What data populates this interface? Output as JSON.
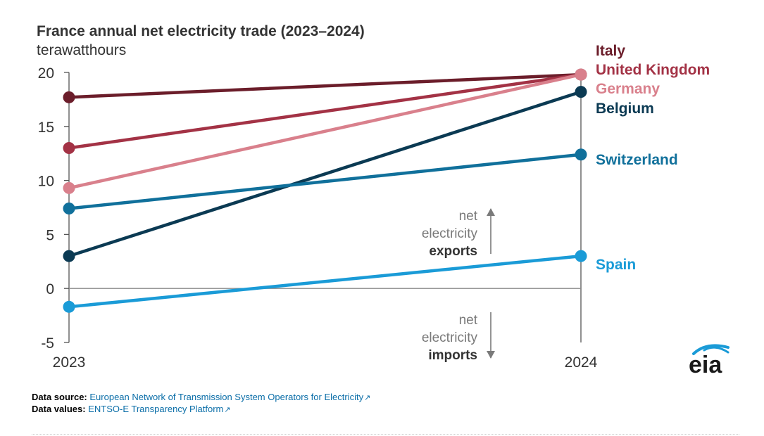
{
  "chart_data": {
    "type": "line",
    "title": "France annual net electricity trade (2023–2024)",
    "ylabel": "terawatthours",
    "xlabel": "",
    "categories": [
      "2023",
      "2024"
    ],
    "ylim": [
      -5,
      20
    ],
    "yticks": [
      20,
      15,
      10,
      5,
      0,
      -5
    ],
    "series": [
      {
        "name": "Italy",
        "values": [
          17.7,
          19.8
        ],
        "color": "#6b1d2a"
      },
      {
        "name": "United Kingdom",
        "values": [
          13.0,
          19.8
        ],
        "color": "#a33245"
      },
      {
        "name": "Germany",
        "values": [
          9.3,
          19.8
        ],
        "color": "#d9808c"
      },
      {
        "name": "Belgium",
        "values": [
          3.0,
          18.2
        ],
        "color": "#0b3a53"
      },
      {
        "name": "Switzerland",
        "values": [
          7.4,
          12.4
        ],
        "color": "#10709b"
      },
      {
        "name": "Spain",
        "values": [
          -1.7,
          3.0
        ],
        "color": "#1a9bd7"
      }
    ],
    "annotations": {
      "exports": {
        "line1": "net",
        "line2": "electricity",
        "line3": "exports"
      },
      "imports": {
        "line1": "net",
        "line2": "electricity",
        "line3": "imports"
      }
    }
  },
  "footer": {
    "source_label": "Data source:",
    "source_text": "European Network of Transmission System Operators for Electricity",
    "values_label": "Data values:",
    "values_text": "ENTSO-E Transparency Platform"
  },
  "logo": {
    "text": "eia"
  }
}
